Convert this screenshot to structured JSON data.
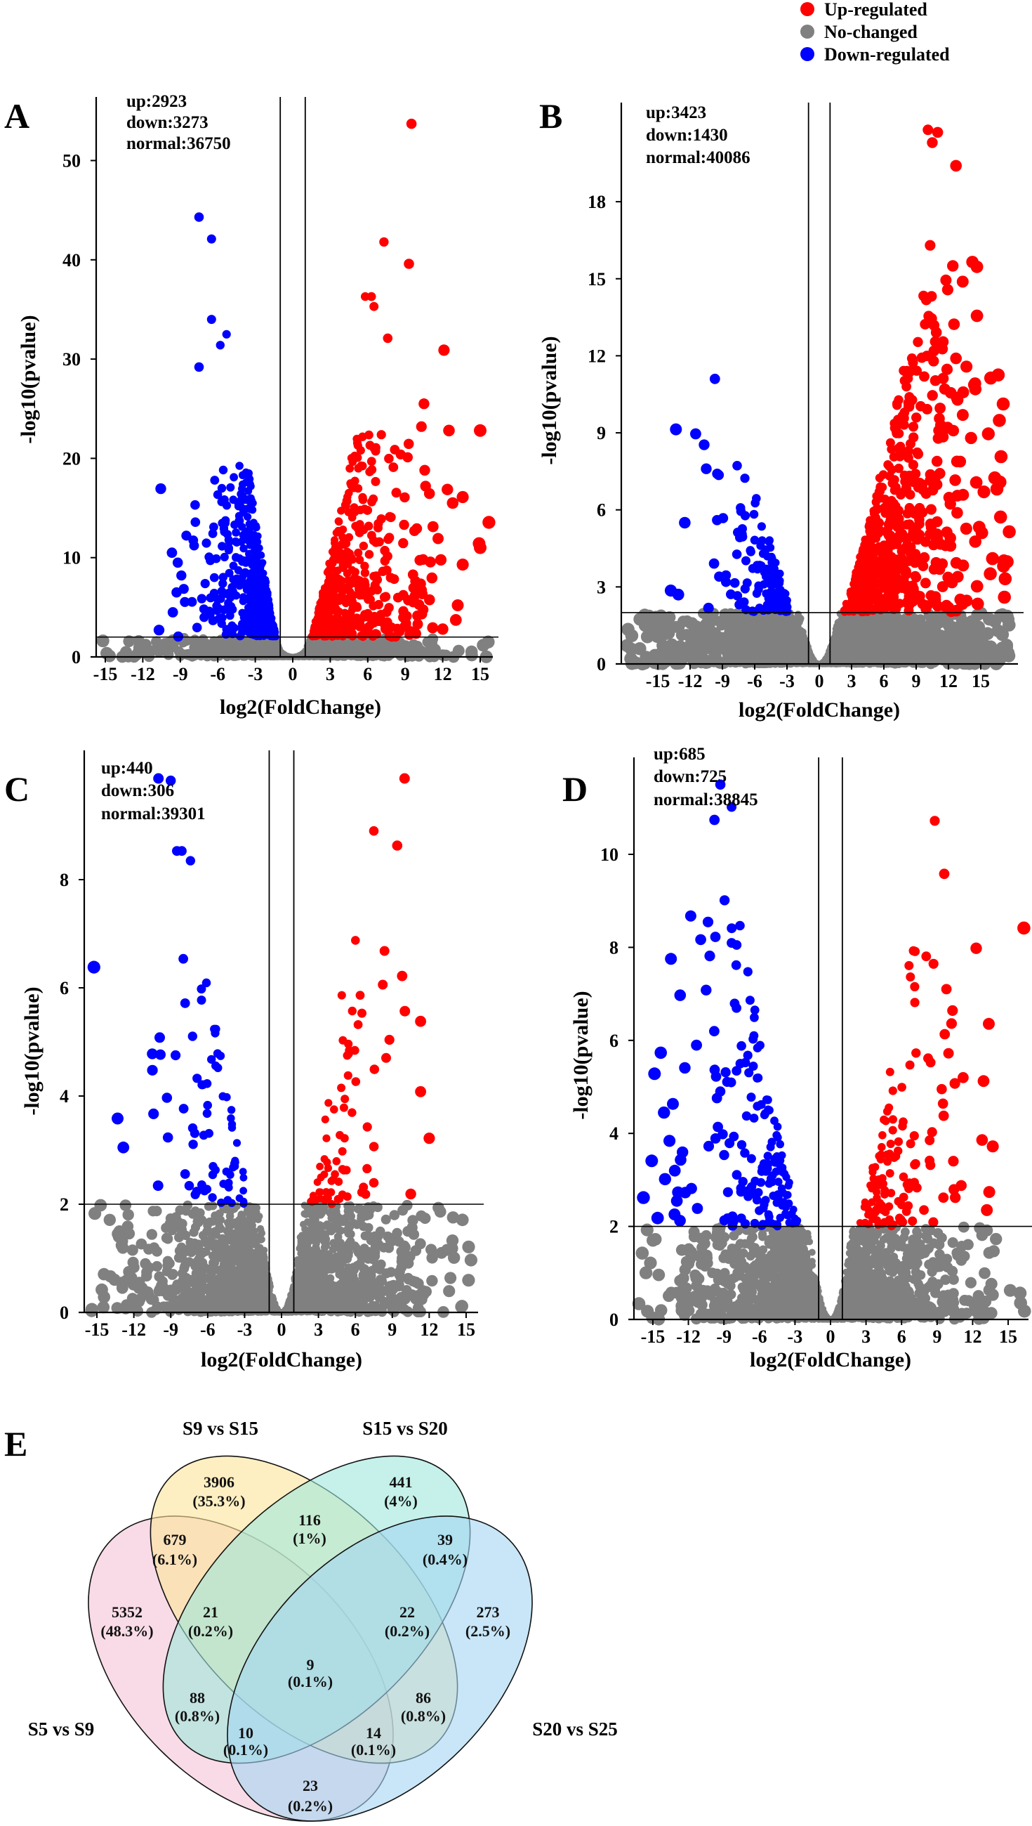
{
  "legend": {
    "items": [
      {
        "label": "Up-regulated",
        "color": "#ff0000"
      },
      {
        "label": "No-changed",
        "color": "#808080"
      },
      {
        "label": "Down-regulated",
        "color": "#0000ff"
      }
    ]
  },
  "chart_data": [
    {
      "panel": "A",
      "type": "scatter",
      "xlabel": "log2(FoldChange)",
      "ylabel": "-log10(pvalue)",
      "annotation": {
        "up": "up:2923",
        "down": "down:3273",
        "normal": "normal:36750"
      },
      "counts": {
        "up": 2923,
        "down": 3273,
        "normal": 36750
      },
      "xlim": [
        -15.7,
        16.1
      ],
      "ylim": [
        0,
        56.4
      ],
      "xticks": [
        -15,
        -12,
        -9,
        -6,
        -3,
        0,
        3,
        6,
        9,
        12,
        15
      ],
      "yticks": [
        0,
        10,
        20,
        30,
        40,
        50
      ],
      "thresholds": {
        "log2FoldChange": [
          -1,
          1
        ],
        "neg_log10_pvalue": 2
      },
      "colors": {
        "up": "#ff0000",
        "normal": "#808080",
        "down": "#0000ff"
      },
      "points": [
        {
          "x": 9.5,
          "y": 53.7,
          "group": "up"
        },
        {
          "x": 7.3,
          "y": 41.8,
          "group": "up"
        },
        {
          "x": 9.3,
          "y": 39.6,
          "group": "up"
        },
        {
          "x": 5.8,
          "y": 36.3,
          "group": "up"
        },
        {
          "x": 6.3,
          "y": 36.3,
          "group": "up"
        },
        {
          "x": 6.5,
          "y": 35.3,
          "group": "up"
        },
        {
          "x": 12.1,
          "y": 30.9,
          "group": "up"
        },
        {
          "x": 7.6,
          "y": 32.1,
          "group": "up"
        },
        {
          "x": 10.5,
          "y": 25.5,
          "group": "up"
        },
        {
          "x": 10.3,
          "y": 23.2,
          "group": "up"
        },
        {
          "x": 12.5,
          "y": 22.8,
          "group": "up"
        },
        {
          "x": 15,
          "y": 22.8,
          "group": "up"
        },
        {
          "x": 13.6,
          "y": 16.1,
          "group": "up"
        },
        {
          "x": 15,
          "y": 11,
          "group": "up"
        },
        {
          "x": 13.6,
          "y": 9.3,
          "group": "up"
        },
        {
          "x": 13.2,
          "y": 5.2,
          "group": "up"
        },
        {
          "x": 12,
          "y": 2.8,
          "group": "up"
        },
        {
          "x": 12.8,
          "y": 15.5,
          "group": "up"
        },
        {
          "x": -7.5,
          "y": 44.3,
          "group": "down"
        },
        {
          "x": -6.5,
          "y": 42.1,
          "group": "down"
        },
        {
          "x": -6.5,
          "y": 34.0,
          "group": "down"
        },
        {
          "x": -5.3,
          "y": 32.5,
          "group": "down"
        },
        {
          "x": -5.8,
          "y": 31.4,
          "group": "down"
        },
        {
          "x": -7.5,
          "y": 29.2,
          "group": "down"
        },
        {
          "x": -9.2,
          "y": 9.5,
          "group": "down"
        },
        {
          "x": -9.3,
          "y": 6.5,
          "group": "down"
        },
        {
          "x": -10.7,
          "y": 2.7,
          "group": "down"
        },
        {
          "x": -11.8,
          "y": 1.2,
          "group": "normal"
        },
        {
          "x": -9.8,
          "y": 0.9,
          "group": "normal"
        },
        {
          "x": 10.8,
          "y": 1.5,
          "group": "normal"
        }
      ]
    },
    {
      "panel": "B",
      "type": "scatter",
      "xlabel": "log2(FoldChange)",
      "ylabel": "-log10(pvalue)",
      "annotation": {
        "up": "up:3423",
        "down": "down:1430",
        "normal": "normal:40086"
      },
      "counts": {
        "up": 3423,
        "down": 1430,
        "normal": 40086
      },
      "xlim": [
        -18.4,
        18.5
      ],
      "ylim": [
        0,
        21.9
      ],
      "xticks": [
        -15,
        -12,
        -9,
        -6,
        -3,
        0,
        3,
        6,
        9,
        12,
        15
      ],
      "yticks": [
        0,
        3,
        6,
        9,
        12,
        15,
        18
      ],
      "thresholds": {
        "log2FoldChange": [
          -1,
          1
        ],
        "neg_log10_pvalue": 2
      },
      "colors": {
        "up": "#ff0000",
        "normal": "#808080",
        "down": "#0000ff"
      },
      "points": [
        {
          "x": 10.1,
          "y": 20.8,
          "group": "up"
        },
        {
          "x": 11,
          "y": 20.7,
          "group": "up"
        },
        {
          "x": 10.5,
          "y": 20.3,
          "group": "up"
        },
        {
          "x": 12.7,
          "y": 19.4,
          "group": "up"
        },
        {
          "x": 10.3,
          "y": 16.3,
          "group": "up"
        },
        {
          "x": 17.2,
          "y": 2.6,
          "group": "up"
        },
        {
          "x": 15.3,
          "y": 6.7,
          "group": "up"
        },
        {
          "x": 14.5,
          "y": 10.7,
          "group": "up"
        },
        {
          "x": 12.7,
          "y": 11.9,
          "group": "up"
        },
        {
          "x": 16.1,
          "y": 4.1,
          "group": "up"
        },
        {
          "x": 14.1,
          "y": 8.8,
          "group": "up"
        },
        {
          "x": -9.7,
          "y": 11.1,
          "group": "down"
        },
        {
          "x": -12.5,
          "y": 5.5,
          "group": "down"
        },
        {
          "x": -13.1,
          "y": 2.7,
          "group": "down"
        },
        {
          "x": -10.5,
          "y": 7.6,
          "group": "down"
        },
        {
          "x": -9.5,
          "y": 5.6,
          "group": "down"
        },
        {
          "x": -9.3,
          "y": 3.4,
          "group": "down"
        },
        {
          "x": -11.8,
          "y": 1.6,
          "group": "normal"
        },
        {
          "x": -11.6,
          "y": 0.6,
          "group": "normal"
        },
        {
          "x": 17.5,
          "y": 0.4,
          "group": "normal"
        }
      ]
    },
    {
      "panel": "C",
      "type": "scatter",
      "xlabel": "log2(FoldChange)",
      "ylabel": "-log10(pvalue)",
      "annotation": {
        "up": "up:440",
        "down": "down:306",
        "normal": "normal:39301"
      },
      "counts": {
        "up": 440,
        "down": 306,
        "normal": 39301
      },
      "xlim": [
        -16.0,
        16.0
      ],
      "ylim": [
        0,
        10.39
      ],
      "xticks": [
        -15,
        -12,
        -9,
        -6,
        -3,
        0,
        3,
        6,
        9,
        12,
        15
      ],
      "yticks": [
        0,
        2,
        4,
        6,
        8
      ],
      "thresholds": {
        "log2FoldChange": [
          -1,
          1
        ],
        "neg_log10_pvalue": 2
      },
      "colors": {
        "up": "#ff0000",
        "normal": "#808080",
        "down": "#0000ff"
      },
      "points": [
        {
          "x": -10,
          "y": 9.87,
          "group": "down"
        },
        {
          "x": -9,
          "y": 9.83,
          "group": "down"
        },
        {
          "x": -10.5,
          "y": 4.78,
          "group": "down"
        },
        {
          "x": -9.9,
          "y": 5.08,
          "group": "down"
        },
        {
          "x": -10.4,
          "y": 3.67,
          "group": "down"
        },
        {
          "x": -8.5,
          "y": 8.53,
          "group": "down"
        },
        {
          "x": -8.1,
          "y": 8.53,
          "group": "down"
        },
        {
          "x": -7.4,
          "y": 8.35,
          "group": "down"
        },
        {
          "x": 10,
          "y": 9.87,
          "group": "up"
        },
        {
          "x": 7.5,
          "y": 8.9,
          "group": "up"
        },
        {
          "x": 9.4,
          "y": 8.63,
          "group": "up"
        },
        {
          "x": 11.3,
          "y": 5.38,
          "group": "up"
        },
        {
          "x": 12,
          "y": 3.22,
          "group": "up"
        },
        {
          "x": 11.3,
          "y": 4.08,
          "group": "up"
        },
        {
          "x": 10.5,
          "y": 2.19,
          "group": "up"
        },
        {
          "x": 9.8,
          "y": 6.22,
          "group": "up"
        },
        {
          "x": 15.2,
          "y": 1.21,
          "group": "normal"
        },
        {
          "x": 14.7,
          "y": 1.71,
          "group": "normal"
        },
        {
          "x": 13,
          "y": 1.1,
          "group": "normal"
        },
        {
          "x": -12.5,
          "y": 1.59,
          "group": "normal"
        },
        {
          "x": -13,
          "y": 1.24,
          "group": "normal"
        },
        {
          "x": -13,
          "y": 0.55,
          "group": "normal"
        }
      ]
    },
    {
      "panel": "D",
      "type": "scatter",
      "xlabel": "log2(FoldChange)",
      "ylabel": "-log10(pvalue)",
      "annotation": {
        "up": "up:685",
        "down": "down:725",
        "normal": "normal:38845"
      },
      "counts": {
        "up": 685,
        "down": 725,
        "normal": 38845
      },
      "xlim": [
        -16.6,
        16.7
      ],
      "ylim": [
        0,
        12.08
      ],
      "xticks": [
        -15,
        -12,
        -9,
        -6,
        -3,
        0,
        3,
        6,
        9,
        12,
        15
      ],
      "yticks": [
        0,
        2,
        4,
        6,
        8,
        10
      ],
      "thresholds": {
        "log2FoldChange": [
          -1,
          1
        ],
        "neg_log10_pvalue": 2
      },
      "colors": {
        "up": "#ff0000",
        "normal": "#808080",
        "down": "#0000ff"
      },
      "points": [
        {
          "x": -9.3,
          "y": 11.5,
          "group": "down"
        },
        {
          "x": -8.35,
          "y": 11.02,
          "group": "down"
        },
        {
          "x": -9.8,
          "y": 10.74,
          "group": "down"
        },
        {
          "x": -15.8,
          "y": 2.62,
          "group": "down"
        },
        {
          "x": -15.1,
          "y": 3.41,
          "group": "down"
        },
        {
          "x": -12.7,
          "y": 6.97,
          "group": "down"
        },
        {
          "x": -12.3,
          "y": 5.41,
          "group": "down"
        },
        {
          "x": -13.6,
          "y": 3.84,
          "group": "down"
        },
        {
          "x": -14.6,
          "y": 2.18,
          "group": "down"
        },
        {
          "x": 8.8,
          "y": 10.72,
          "group": "up"
        },
        {
          "x": 12.3,
          "y": 7.98,
          "group": "up"
        },
        {
          "x": 13.7,
          "y": 3.72,
          "group": "up"
        },
        {
          "x": 13.4,
          "y": 2.74,
          "group": "up"
        },
        {
          "x": 13.2,
          "y": 2.35,
          "group": "up"
        },
        {
          "x": 10.3,
          "y": 6.64,
          "group": "up"
        },
        {
          "x": 11.2,
          "y": 5.2,
          "group": "up"
        },
        {
          "x": 9.6,
          "y": 9.58,
          "group": "up"
        },
        {
          "x": 13.4,
          "y": 1.43,
          "group": "normal"
        },
        {
          "x": -15,
          "y": 1.7,
          "group": "normal"
        },
        {
          "x": 13.4,
          "y": 0.63,
          "group": "normal"
        }
      ]
    },
    {
      "panel": "E",
      "type": "venn",
      "sets": [
        {
          "name": "S5 vs S9",
          "color": "#f3c3d6"
        },
        {
          "name": "S9 vs S15",
          "color": "#fde49a"
        },
        {
          "name": "S15 vs S20",
          "color": "#9ee8dc"
        },
        {
          "name": "S20 vs S25",
          "color": "#a3d6f2"
        }
      ],
      "regions": [
        {
          "sets": [
            "S9 vs S15"
          ],
          "count": "3906",
          "percent": "(35.3%)"
        },
        {
          "sets": [
            "S15 vs S20"
          ],
          "count": "441",
          "percent": "(4%)"
        },
        {
          "sets": [
            "S9 vs S15",
            "S15 vs S20"
          ],
          "count": "116",
          "percent": "(1%)"
        },
        {
          "sets": [
            "S5 vs S9",
            "S9 vs S15"
          ],
          "count": "679",
          "percent": "(6.1%)"
        },
        {
          "sets": [
            "S15 vs S20",
            "S20 vs S25"
          ],
          "count": "39",
          "percent": "(0.4%)"
        },
        {
          "sets": [
            "S5 vs S9"
          ],
          "count": "5352",
          "percent": "(48.3%)"
        },
        {
          "sets": [
            "S5 vs S9",
            "S9 vs S15",
            "S15 vs S20"
          ],
          "count": "21",
          "percent": "(0.2%)"
        },
        {
          "sets": [
            "S9 vs S15",
            "S15 vs S20",
            "S20 vs S25"
          ],
          "count": "22",
          "percent": "(0.2%)"
        },
        {
          "sets": [
            "S20 vs S25"
          ],
          "count": "273",
          "percent": "(2.5%)"
        },
        {
          "sets": [
            "S5 vs S9",
            "S9 vs S15",
            "S15 vs S20",
            "S20 vs S25"
          ],
          "count": "9",
          "percent": "(0.1%)"
        },
        {
          "sets": [
            "S5 vs S9",
            "S15 vs S20"
          ],
          "count": "88",
          "percent": "(0.8%)"
        },
        {
          "sets": [
            "S9 vs S15",
            "S20 vs S25"
          ],
          "count": "86",
          "percent": "(0.8%)"
        },
        {
          "sets": [
            "S5 vs S9",
            "S15 vs S20",
            "S20 vs S25"
          ],
          "count": "10",
          "percent": "(0.1%)"
        },
        {
          "sets": [
            "S5 vs S9",
            "S9 vs S15",
            "S20 vs S25"
          ],
          "count": "14",
          "percent": "(0.1%)"
        },
        {
          "sets": [
            "S5 vs S9",
            "S20 vs S25"
          ],
          "count": "23",
          "percent": "(0.2%)"
        }
      ]
    }
  ]
}
